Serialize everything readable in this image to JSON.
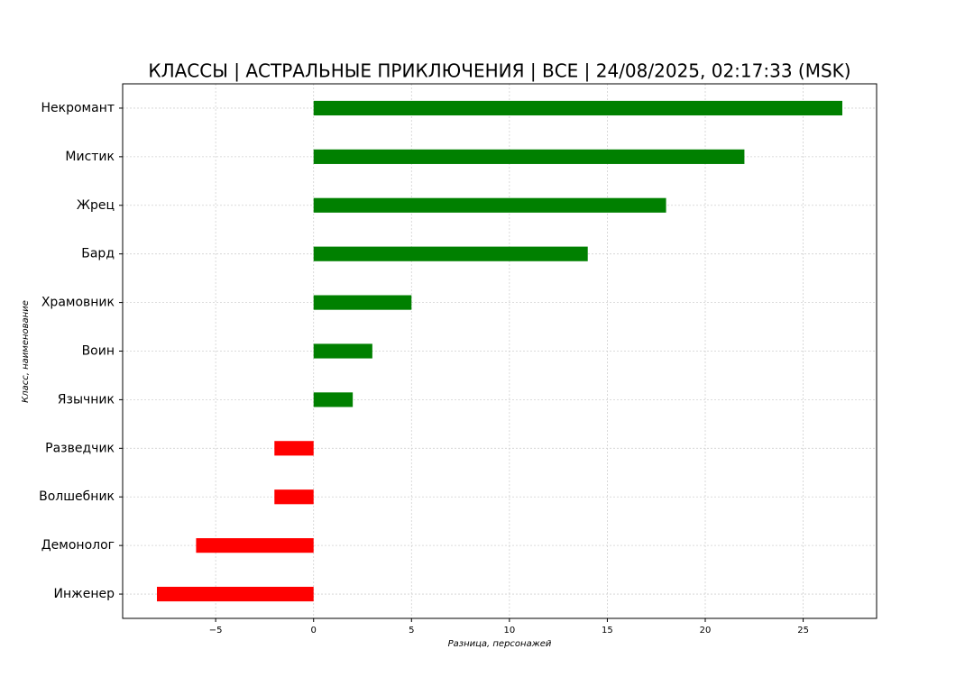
{
  "chart_data": {
    "type": "hbar",
    "title": "КЛАССЫ | АСТРАЛЬНЫЕ ПРИКЛЮЧЕНИЯ | ВСЕ | 24/08/2025, 02:17:33 (MSK)",
    "x_label": "Разница, персонажей",
    "y_label": "Класс, наименование",
    "categories": [
      "Некромант",
      "Мистик",
      "Жрец",
      "Бард",
      "Храмовник",
      "Воин",
      "Язычник",
      "Разведчик",
      "Волшебник",
      "Демонолог",
      "Инженер"
    ],
    "values": [
      27,
      22,
      18,
      14,
      5,
      3,
      2,
      -2,
      -2,
      -6,
      -8
    ],
    "colors": [
      "#008000",
      "#008000",
      "#008000",
      "#008000",
      "#008000",
      "#008000",
      "#008000",
      "#ff0000",
      "#ff0000",
      "#ff0000",
      "#ff0000"
    ],
    "xlim": [
      -9.75,
      28.75
    ],
    "xticks": [
      {
        "value": -5,
        "label": "−5"
      },
      0,
      5,
      10,
      15,
      20,
      25
    ],
    "grid": true
  }
}
